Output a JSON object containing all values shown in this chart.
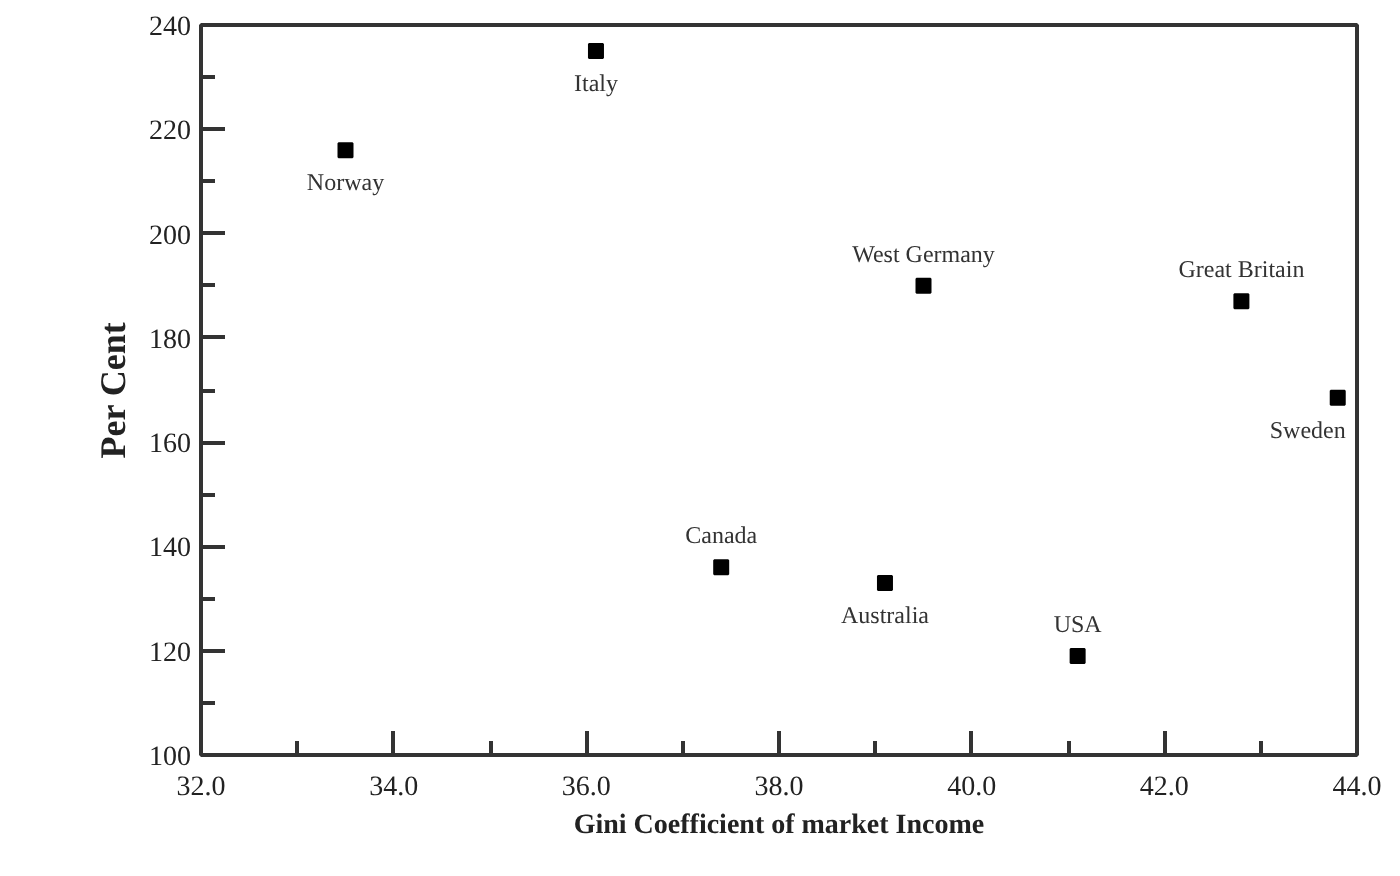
{
  "chart_data": {
    "type": "scatter",
    "xlabel": "Gini Coefficient of market Income",
    "ylabel": "Per Cent",
    "x": [
      33.5,
      36.1,
      37.4,
      39.5,
      42.8,
      43.8,
      39.1,
      41.1
    ],
    "series": [
      {
        "color": "#000000",
        "values": [
          216,
          235,
          136,
          190,
          187,
          168.5,
          133,
          119
        ]
      }
    ],
    "marker": "square",
    "grid": false,
    "xlim": [
      32,
      44
    ],
    "ylim": [
      100,
      240
    ],
    "xticks": [
      {
        "value": 32,
        "label": "32.0"
      },
      {
        "value": 33,
        "label": null
      },
      {
        "value": 34,
        "label": "34.0"
      },
      {
        "value": 35,
        "label": null
      },
      {
        "value": 36,
        "label": "36.0"
      },
      {
        "value": 37,
        "label": null
      },
      {
        "value": 38,
        "label": "38.0"
      },
      {
        "value": 39,
        "label": null
      },
      {
        "value": 40,
        "label": "40.0"
      },
      {
        "value": 41,
        "label": null
      },
      {
        "value": 42,
        "label": "42.0"
      },
      {
        "value": 43,
        "label": null
      },
      {
        "value": 44,
        "label": "44.0"
      }
    ],
    "yticks": [
      100,
      {
        "value": 110,
        "label": null
      },
      120,
      {
        "value": 130,
        "label": null
      },
      140,
      {
        "value": 150,
        "label": null
      },
      160,
      {
        "value": 170,
        "label": null
      },
      180,
      {
        "value": 190,
        "label": null
      },
      200,
      {
        "value": 210,
        "label": null
      },
      220,
      {
        "value": 230,
        "label": null
      },
      240
    ],
    "annotations": [
      {
        "text": "Norway",
        "x": 33.5,
        "y": 216
      },
      {
        "text": "Italy",
        "x": 36.1,
        "y": 235
      },
      {
        "text": "Canada",
        "x": 37.4,
        "y": 136
      },
      {
        "text": "West Germany",
        "x": 39.5,
        "y": 190
      },
      {
        "text": "Great Britain",
        "x": 42.8,
        "y": 187
      },
      {
        "text": "Sweden",
        "x": 43.8,
        "y": 168.5
      },
      {
        "text": "Australia",
        "x": 39.1,
        "y": 133
      },
      {
        "text": "USA",
        "x": 41.1,
        "y": 119
      }
    ]
  }
}
